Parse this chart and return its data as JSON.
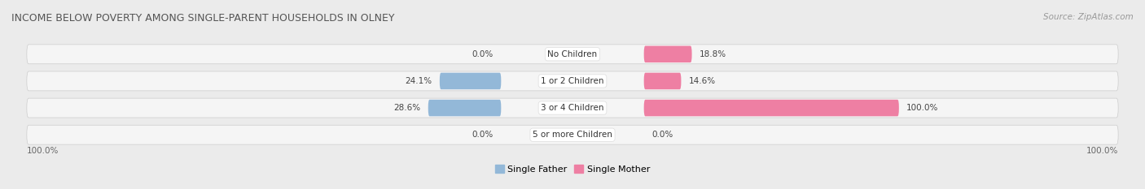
{
  "title": "INCOME BELOW POVERTY AMONG SINGLE-PARENT HOUSEHOLDS IN OLNEY",
  "source": "Source: ZipAtlas.com",
  "categories": [
    "No Children",
    "1 or 2 Children",
    "3 or 4 Children",
    "5 or more Children"
  ],
  "single_father": [
    0.0,
    24.1,
    28.6,
    0.0
  ],
  "single_mother": [
    18.8,
    14.6,
    100.0,
    0.0
  ],
  "father_color": "#93b8d8",
  "mother_color": "#ee7fa3",
  "father_color_light": "#b8d0e8",
  "mother_color_light": "#f5a8c0",
  "bg_color": "#ebebeb",
  "row_bg_color": "#f5f5f5",
  "axis_label": "100.0%",
  "max_val": 100.0,
  "figsize": [
    14.06,
    2.33
  ],
  "dpi": 100,
  "title_fontsize": 9,
  "source_fontsize": 7.5,
  "label_fontsize": 7.5,
  "cat_fontsize": 7.5,
  "legend_fontsize": 8
}
